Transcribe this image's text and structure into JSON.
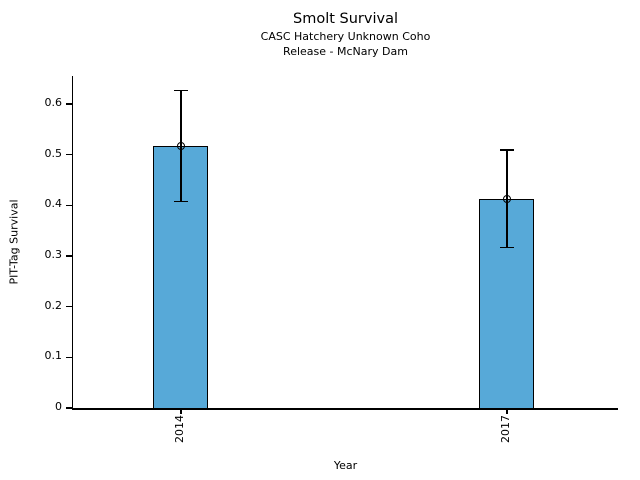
{
  "chart_data": {
    "type": "bar",
    "title": "Smolt Survival",
    "subtitle_line1": "CASC Hatchery Unknown Coho",
    "subtitle_line2": "Release - McNary Dam",
    "xlabel": "Year",
    "ylabel": "PIT-Tag Survival",
    "categories": [
      "2014",
      "2017"
    ],
    "values": [
      0.517,
      0.412
    ],
    "error_low": [
      0.407,
      0.317
    ],
    "error_high": [
      0.626,
      0.509
    ],
    "yticks": [
      0,
      0.1,
      0.2,
      0.3,
      0.4,
      0.5,
      0.6
    ],
    "ytick_labels": [
      "0",
      "0.1",
      "0.2",
      "0.3",
      "0.4",
      "0.5",
      "0.6"
    ],
    "ylim": [
      0,
      0.655
    ],
    "bar_centers_fraction": [
      0.198,
      0.796
    ],
    "bar_width_fraction": 0.101,
    "bar_color": "#57a9d8",
    "bar_edge_color": "#000000",
    "error_color": "#000000",
    "marker": "open-circle",
    "grid": false,
    "legend": null
  }
}
